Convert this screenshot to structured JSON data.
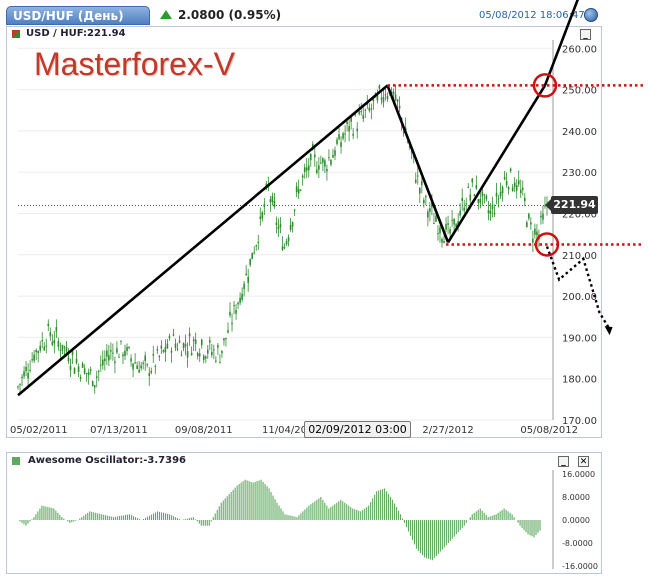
{
  "header": {
    "symbol_tab": "USD/HUF (День)",
    "change": "2.0800 (0.95%)",
    "datetime": "05/08/2012 18:06:47"
  },
  "main_panel": {
    "title": "USD / HUF:221.94",
    "brand": "Masterforex-V",
    "last_price_tag": "221.94",
    "crosshair_time": "02/09/2012 03:00",
    "colors": {
      "candle": "#2e8b2e",
      "trend": "#000000",
      "level": "#cc1111"
    }
  },
  "oscillator_panel": {
    "title": "Awesome Oscillator:-3.7396",
    "color": "#5fa85f"
  },
  "chart_data": [
    {
      "type": "line",
      "name": "USD/HUF daily",
      "x_tick_labels": [
        "05/02/2011",
        "07/13/2011",
        "09/08/2011",
        "11/04/20",
        "2/27/2012",
        "05/08/2012"
      ],
      "y_tick_labels": [
        "260.00",
        "250.00",
        "240.00",
        "230.00",
        "220.00",
        "210.00",
        "200.00",
        "190.00",
        "180.00",
        "170.00"
      ],
      "ylim": [
        170,
        262
      ],
      "x_index_range": [
        0,
        262
      ],
      "x_tick_index": [
        0,
        50,
        92,
        132,
        213,
        262
      ],
      "series": [
        {
          "values": [
            [
              0,
              178
            ],
            [
              8,
              186
            ],
            [
              15,
              191
            ],
            [
              22,
              188
            ],
            [
              30,
              183
            ],
            [
              38,
              180
            ],
            [
              45,
              186
            ],
            [
              52,
              187
            ],
            [
              58,
              184
            ],
            [
              64,
              182
            ],
            [
              70,
              185
            ],
            [
              76,
              189
            ],
            [
              82,
              188
            ],
            [
              88,
              189
            ],
            [
              94,
              187
            ],
            [
              100,
              186
            ],
            [
              103,
              190
            ],
            [
              107,
              196
            ],
            [
              112,
              203
            ],
            [
              116,
              210
            ],
            [
              120,
              217
            ],
            [
              124,
              226
            ],
            [
              128,
              218
            ],
            [
              132,
              212
            ],
            [
              136,
              220
            ],
            [
              140,
              227
            ],
            [
              146,
              233
            ],
            [
              152,
              232
            ],
            [
              158,
              236
            ],
            [
              164,
              241
            ],
            [
              170,
              243
            ],
            [
              176,
              246
            ],
            [
              182,
              250
            ],
            [
              186,
              249
            ],
            [
              190,
              243
            ],
            [
              194,
              236
            ],
            [
              198,
              228
            ],
            [
              202,
              222
            ],
            [
              206,
              219
            ],
            [
              210,
              216
            ],
            [
              214,
              215
            ],
            [
              218,
              219
            ],
            [
              222,
              224
            ],
            [
              226,
              226
            ],
            [
              230,
              223
            ],
            [
              234,
              220
            ],
            [
              238,
              224
            ],
            [
              242,
              229
            ],
            [
              246,
              228
            ],
            [
              250,
              224
            ],
            [
              254,
              216
            ],
            [
              258,
              215
            ],
            [
              262,
              222
            ]
          ]
        }
      ],
      "annotations": {
        "trendlines": [
          {
            "from": [
              0,
              176
            ],
            "to": [
              183,
              251
            ]
          },
          {
            "from": [
              183,
              251
            ],
            "to": [
              213,
              213
            ]
          },
          {
            "from": [
              213,
              213
            ],
            "to": [
              261,
              251
            ]
          },
          {
            "from": [
              261,
              251
            ],
            "to": [
              293,
              292
            ]
          }
        ],
        "levels": [
          {
            "price": 251.0,
            "from_index": 183,
            "to_index": 300
          },
          {
            "price": 212.5,
            "from_index": 212,
            "to_index": 300
          }
        ],
        "circles": [
          {
            "index": 261,
            "price": 251.0
          },
          {
            "index": 262,
            "price": 212.5
          }
        ],
        "projection": [
          [
            262,
            212
          ],
          [
            268,
            204
          ],
          [
            280,
            209
          ],
          [
            288,
            196
          ],
          [
            293,
            192
          ]
        ],
        "reference_line_price": 221.94
      }
    },
    {
      "type": "bar",
      "name": "Awesome Oscillator",
      "y_tick_labels": [
        "16.0000",
        "8.0000",
        "0.0000",
        "-8.0000",
        "-16.0000"
      ],
      "ylim": [
        -16,
        16
      ],
      "x_index_range": [
        0,
        262
      ],
      "profile_points": [
        [
          0,
          0
        ],
        [
          4,
          -2
        ],
        [
          8,
          1
        ],
        [
          12,
          5
        ],
        [
          18,
          4
        ],
        [
          22,
          1
        ],
        [
          26,
          -1
        ],
        [
          30,
          0
        ],
        [
          36,
          3
        ],
        [
          42,
          2
        ],
        [
          48,
          1
        ],
        [
          56,
          2
        ],
        [
          62,
          0
        ],
        [
          70,
          3
        ],
        [
          76,
          2
        ],
        [
          82,
          0
        ],
        [
          88,
          1
        ],
        [
          92,
          -2
        ],
        [
          96,
          -2
        ],
        [
          98,
          1
        ],
        [
          102,
          6
        ],
        [
          106,
          9
        ],
        [
          110,
          12
        ],
        [
          114,
          14
        ],
        [
          118,
          13
        ],
        [
          122,
          14
        ],
        [
          126,
          11
        ],
        [
          130,
          6
        ],
        [
          134,
          2
        ],
        [
          140,
          1
        ],
        [
          146,
          5
        ],
        [
          152,
          8
        ],
        [
          156,
          4
        ],
        [
          162,
          7
        ],
        [
          168,
          4
        ],
        [
          172,
          3
        ],
        [
          176,
          5
        ],
        [
          180,
          10
        ],
        [
          184,
          11
        ],
        [
          188,
          7
        ],
        [
          192,
          2
        ],
        [
          196,
          -4
        ],
        [
          200,
          -10
        ],
        [
          204,
          -13
        ],
        [
          208,
          -14
        ],
        [
          212,
          -11
        ],
        [
          216,
          -8
        ],
        [
          220,
          -5
        ],
        [
          224,
          -2
        ],
        [
          228,
          2
        ],
        [
          232,
          4
        ],
        [
          236,
          1
        ],
        [
          240,
          2
        ],
        [
          244,
          4
        ],
        [
          248,
          2
        ],
        [
          252,
          -2
        ],
        [
          256,
          -5
        ],
        [
          259,
          -6
        ],
        [
          262,
          -3.7
        ]
      ],
      "last_value": -3.7396
    }
  ]
}
